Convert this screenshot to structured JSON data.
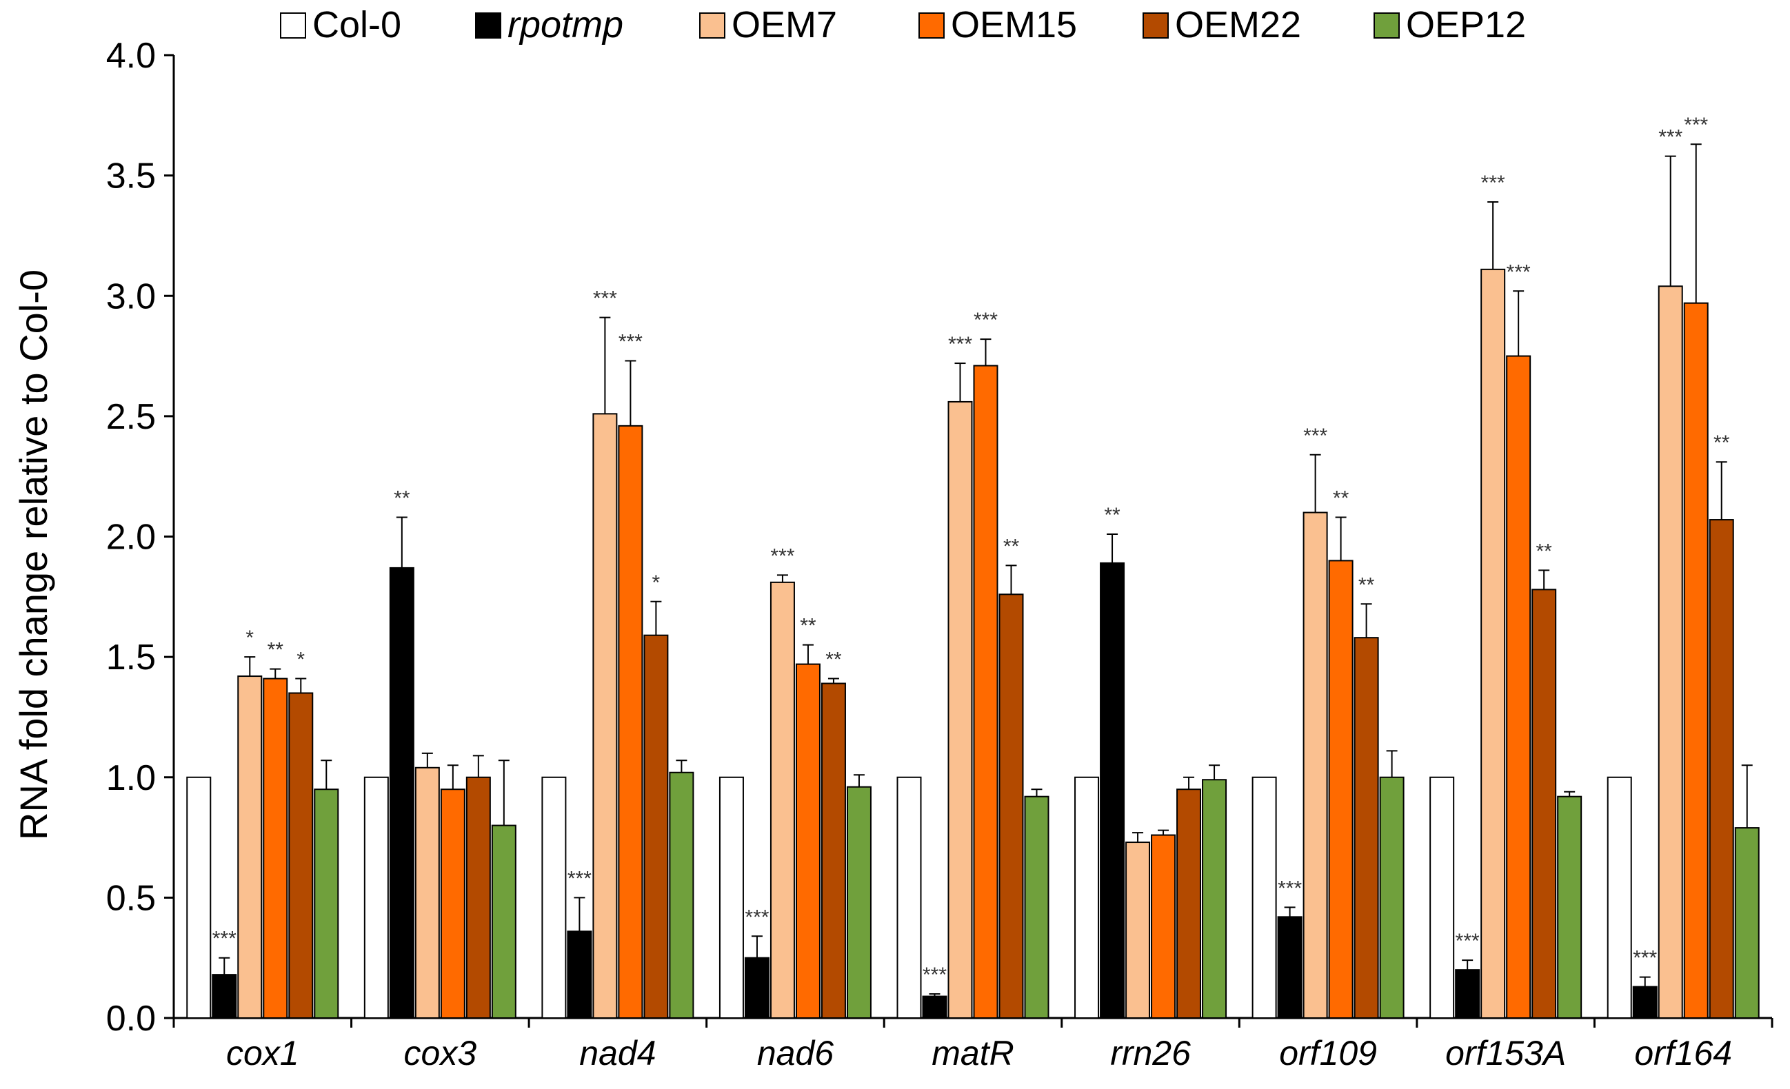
{
  "chart_data": {
    "type": "bar",
    "title": "",
    "xlabel": "",
    "ylabel": "RNA fold change relative to Col-0",
    "ylim": [
      0,
      4.0
    ],
    "yticks": [
      "0.0",
      "0.5",
      "1.0",
      "1.5",
      "2.0",
      "2.5",
      "3.0",
      "3.5",
      "4.0"
    ],
    "grid": false,
    "legend_position": "top",
    "categories": [
      "cox1",
      "cox3",
      "nad4",
      "nad6",
      "matR",
      "rrn26",
      "orf109",
      "orf153A",
      "orf164"
    ],
    "series": [
      {
        "name": "Col-0",
        "italic": false,
        "color": "#ffffff",
        "values": [
          1.0,
          1.0,
          1.0,
          1.0,
          1.0,
          1.0,
          1.0,
          1.0,
          1.0
        ],
        "errors": [
          0,
          0,
          0,
          0,
          0,
          0,
          0,
          0,
          0
        ],
        "significance": [
          "",
          "",
          "",
          "",
          "",
          "",
          "",
          "",
          ""
        ]
      },
      {
        "name": "rpotmp",
        "italic": true,
        "color": "#000000",
        "values": [
          0.18,
          1.87,
          0.36,
          0.25,
          0.09,
          1.89,
          0.42,
          0.2,
          0.13
        ],
        "errors": [
          0.07,
          0.21,
          0.14,
          0.09,
          0.01,
          0.12,
          0.04,
          0.04,
          0.04
        ],
        "significance": [
          "***",
          "**",
          "***",
          "***",
          "***",
          "**",
          "***",
          "***",
          "***"
        ]
      },
      {
        "name": "OEM7",
        "italic": false,
        "color": "#fac090",
        "values": [
          1.42,
          1.04,
          2.51,
          1.81,
          2.56,
          0.73,
          2.1,
          3.11,
          3.04
        ],
        "errors": [
          0.08,
          0.06,
          0.4,
          0.03,
          0.16,
          0.04,
          0.24,
          0.28,
          0.54
        ],
        "significance": [
          "*",
          "",
          "***",
          "***",
          "***",
          "",
          "***",
          "***",
          "***"
        ]
      },
      {
        "name": "OEM15",
        "italic": false,
        "color": "#ff6a00",
        "values": [
          1.41,
          0.95,
          2.46,
          1.47,
          2.71,
          0.76,
          1.9,
          2.75,
          2.97
        ],
        "errors": [
          0.04,
          0.1,
          0.27,
          0.08,
          0.11,
          0.02,
          0.18,
          0.27,
          0.66
        ],
        "significance": [
          "**",
          "",
          "***",
          "**",
          "***",
          "",
          "**",
          "***",
          "***"
        ]
      },
      {
        "name": "OEM22",
        "italic": false,
        "color": "#b34a00",
        "values": [
          1.35,
          1.0,
          1.59,
          1.39,
          1.76,
          0.95,
          1.58,
          1.78,
          2.07
        ],
        "errors": [
          0.06,
          0.09,
          0.14,
          0.02,
          0.12,
          0.05,
          0.14,
          0.08,
          0.24
        ],
        "significance": [
          "*",
          "",
          "*",
          "**",
          "**",
          "",
          "**",
          "**",
          "**"
        ]
      },
      {
        "name": "OEP12",
        "italic": false,
        "color": "#70a03c",
        "values": [
          0.95,
          0.8,
          1.02,
          0.96,
          0.92,
          0.99,
          1.0,
          0.92,
          0.79
        ],
        "errors": [
          0.12,
          0.27,
          0.05,
          0.05,
          0.03,
          0.06,
          0.11,
          0.02,
          0.26
        ],
        "significance": [
          "",
          "",
          "",
          "",
          "",
          "",
          "",
          "",
          ""
        ]
      }
    ]
  }
}
